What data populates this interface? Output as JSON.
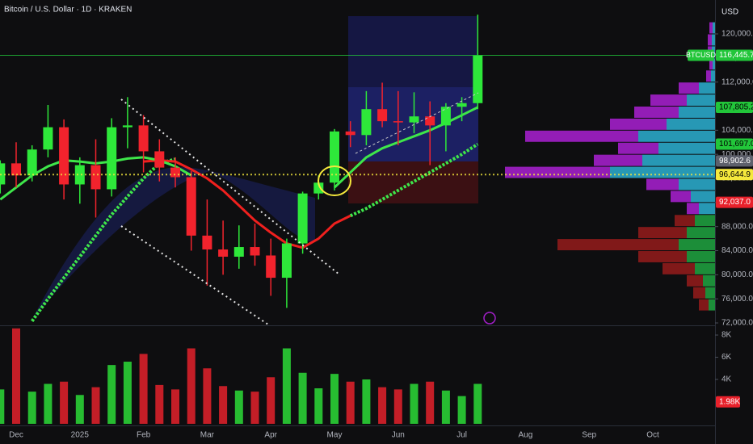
{
  "chart_data": {
    "type": "candlestick",
    "title": "Bitcoin / U.S. Dollar · 1D · KRAKEN",
    "currency": "USD",
    "up_color": "#2ee83a",
    "down_color": "#f2232d",
    "categories": [
      null,
      "Dec",
      null,
      null,
      null,
      "2025",
      null,
      null,
      null,
      "Feb",
      null,
      null,
      null,
      "Mar",
      null,
      null,
      null,
      "Apr",
      null,
      null,
      null,
      "May",
      null,
      null,
      null,
      "Jun",
      null,
      null,
      null,
      "Jul",
      null,
      null,
      null,
      "Aug",
      null,
      null,
      null,
      "Sep",
      null,
      null,
      null,
      "Oct",
      null,
      null,
      null
    ],
    "open": [
      95000,
      98500,
      96500,
      100800,
      104500,
      95000,
      98200,
      94200,
      104500,
      104800,
      100500,
      97800,
      96200,
      86500,
      84200,
      83000,
      84600,
      83200,
      79500,
      85200,
      93500,
      95300,
      103800,
      103200,
      107500,
      105500,
      105300,
      106300,
      104800,
      107900,
      108500,
      null,
      null,
      null,
      null,
      null,
      null,
      null,
      null,
      null,
      null,
      null,
      null,
      null,
      null
    ],
    "high": [
      99000,
      102000,
      101500,
      108200,
      105800,
      99500,
      102500,
      106000,
      109500,
      106500,
      102500,
      99500,
      97200,
      92500,
      89000,
      88200,
      88500,
      86000,
      86000,
      93800,
      96500,
      104200,
      105500,
      110500,
      111900,
      110500,
      110300,
      108800,
      108500,
      109500,
      123200,
      null,
      null,
      null,
      null,
      null,
      null,
      null,
      null,
      null,
      null,
      null,
      null,
      null,
      null
    ],
    "low": [
      93500,
      94500,
      95500,
      99500,
      92500,
      91800,
      89500,
      93000,
      101000,
      97000,
      95500,
      94500,
      84000,
      78200,
      80000,
      81000,
      81500,
      76500,
      74500,
      83500,
      92500,
      94000,
      101200,
      101500,
      104500,
      101500,
      103500,
      98200,
      100500,
      105500,
      107500,
      null,
      null,
      null,
      null,
      null,
      null,
      null,
      null,
      null,
      null,
      null,
      null,
      null,
      null
    ],
    "close": [
      98500,
      96500,
      100800,
      104500,
      95000,
      98200,
      94200,
      104500,
      104800,
      100500,
      97800,
      96200,
      86500,
      84200,
      83000,
      84600,
      83200,
      79500,
      85200,
      93500,
      95300,
      103800,
      103200,
      107500,
      105500,
      105300,
      106300,
      104800,
      107900,
      108500,
      116445.7,
      null,
      null,
      null,
      null,
      null,
      null,
      null,
      null,
      null,
      null,
      null,
      null,
      null,
      null
    ],
    "ylim": [
      71600,
      125630
    ],
    "yticks": [
      {
        "value": 72000,
        "label": "72,000.0"
      },
      {
        "value": 76000,
        "label": "76,000.0"
      },
      {
        "value": 80000,
        "label": "80,000.0"
      },
      {
        "value": 84000,
        "label": "84,000.0"
      },
      {
        "value": 88000,
        "label": "88,000.0"
      },
      {
        "value": 92000,
        "label": "92,000.0"
      },
      {
        "value": 96000,
        "label": "96,000.0"
      },
      {
        "value": 100000,
        "label": "100,000.0"
      },
      {
        "value": 104000,
        "label": "104,000.0"
      },
      {
        "value": 108000,
        "label": "108,000.0"
      },
      {
        "value": 112000,
        "label": "112,000.0"
      },
      {
        "value": 116000,
        "label": "116,000.0"
      },
      {
        "value": 120000,
        "label": "120,000.0"
      }
    ],
    "lines": [
      {
        "color": "#3ee64a",
        "style": "dotted",
        "values": [
          null,
          null,
          72300,
          76000,
          79500,
          83000,
          86500,
          90000,
          93000,
          96000,
          98500,
          99200,
          null,
          null,
          null,
          null,
          null,
          null,
          null,
          null,
          null,
          null,
          89800,
          91000,
          92500,
          94000,
          95500,
          97000,
          98500,
          100000,
          101697,
          null,
          null,
          null,
          null,
          null,
          null,
          null,
          null,
          null,
          null,
          null,
          null,
          null,
          null
        ]
      },
      {
        "color": "#f0201e",
        "style": "solid",
        "values": [
          null,
          null,
          null,
          null,
          null,
          null,
          null,
          null,
          null,
          98800,
          99000,
          98800,
          97500,
          96000,
          94000,
          91500,
          89000,
          87000,
          85200,
          84500,
          86000,
          88500,
          89800,
          null,
          null,
          null,
          null,
          null,
          null,
          null,
          null,
          null,
          null,
          null,
          null,
          null,
          null,
          null,
          null,
          null,
          null,
          null,
          null,
          null,
          null
        ]
      },
      {
        "color": "#3ee64a",
        "style": "solid",
        "values": [
          92500,
          94500,
          96500,
          98000,
          99000,
          98800,
          98500,
          98800,
          99300,
          99500,
          99000,
          98000,
          96500,
          null,
          null,
          null,
          null,
          null,
          null,
          null,
          null,
          94500,
          97000,
          99500,
          101000,
          102000,
          103000,
          104000,
          105200,
          106500,
          107805.2,
          null,
          null,
          null,
          null,
          null,
          null,
          null,
          null,
          null,
          null,
          null,
          null,
          null,
          null
        ]
      }
    ],
    "price_labels": [
      {
        "value": 116445.7,
        "label": "116,445.7",
        "color": "#22c63a",
        "text_color": "#ffffff",
        "tag": "BTCUSD",
        "line_style": "solid"
      },
      {
        "value": 107805.2,
        "label": "107,805.2",
        "color": "#22c63a",
        "text_color": "#000000"
      },
      {
        "value": 101697.0,
        "label": "101,697.0",
        "color": "#22c63a",
        "text_color": "#000000"
      },
      {
        "value": 98902.6,
        "label": "98,902.6",
        "color": "#5d606b",
        "text_color": "#ffffff"
      },
      {
        "value": 96644.9,
        "label": "96,644.9",
        "color": "#f5e83c",
        "text_color": "#000000",
        "line_style": "dotted"
      },
      {
        "value": 92037.0,
        "label": "92,037.0",
        "color": "#e8212b",
        "text_color": "#ffffff"
      }
    ],
    "volume": {
      "values": [
        3100,
        8600,
        2900,
        3600,
        3800,
        2600,
        3300,
        5300,
        5600,
        6300,
        3500,
        3100,
        6800,
        5000,
        3400,
        3000,
        2900,
        4200,
        6800,
        4600,
        3200,
        4500,
        3800,
        4000,
        3300,
        3100,
        3600,
        3800,
        3000,
        2500,
        3600,
        null,
        null,
        null,
        null,
        null,
        null,
        null,
        null,
        null,
        null,
        null,
        null,
        null,
        null
      ],
      "ylim": [
        0,
        8730
      ],
      "yticks": [
        {
          "value": 4000,
          "label": "4K"
        },
        {
          "value": 6000,
          "label": "6K"
        },
        {
          "value": 8000,
          "label": "8K"
        }
      ],
      "value_labels": [
        {
          "value": 1980,
          "label": "1.98K",
          "color": "#e8212b"
        }
      ]
    },
    "volume_profile": {
      "bins": [
        74000,
        76000,
        78000,
        80000,
        82000,
        84000,
        86000,
        88000,
        90000,
        92000,
        94000,
        96000,
        98000,
        100000,
        102000,
        104000,
        106000,
        108000,
        110000,
        112000,
        114000,
        116000,
        118000,
        120000,
        122000
      ],
      "series": [
        {
          "color": "#1e9c3e",
          "values": [
            8,
            12,
            15,
            25,
            35,
            45,
            35,
            25,
            null,
            null,
            null,
            null,
            null,
            null,
            null,
            null,
            null,
            null,
            null,
            null,
            null,
            null,
            null,
            null
          ]
        },
        {
          "color": "#8e1b1b",
          "values": [
            12,
            15,
            20,
            40,
            60,
            150,
            60,
            25,
            null,
            null,
            null,
            null,
            null,
            null,
            null,
            null,
            null,
            null,
            null,
            null,
            null,
            null,
            null,
            null
          ]
        },
        {
          "color": "#2aa7c8",
          "values": [
            null,
            null,
            null,
            null,
            null,
            null,
            null,
            null,
            20,
            30,
            45,
            130,
            90,
            70,
            95,
            60,
            45,
            35,
            20,
            5,
            3,
            4,
            4,
            3
          ]
        },
        {
          "color": "#a21fc9",
          "values": [
            null,
            null,
            null,
            null,
            null,
            null,
            null,
            null,
            15,
            25,
            40,
            130,
            60,
            50,
            140,
            70,
            55,
            45,
            25,
            6,
            4,
            5,
            5,
            4
          ]
        }
      ]
    }
  }
}
